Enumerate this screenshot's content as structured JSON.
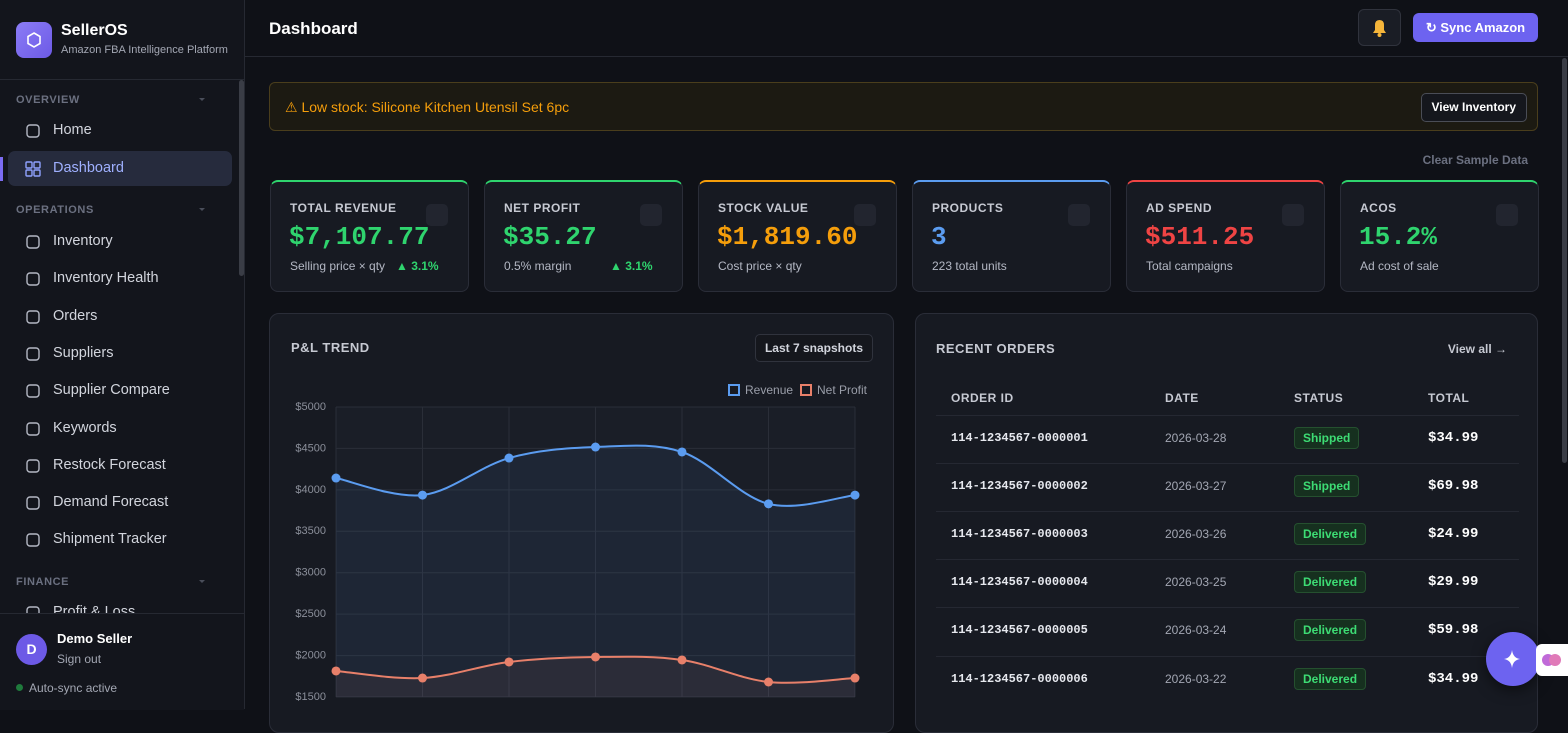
{
  "sidebar": {
    "brand": "SellerOS",
    "tagline": "Amazon FBA Intelligence Platform",
    "sections": [
      {
        "title": "OVERVIEW",
        "items": [
          {
            "label": "Home"
          },
          {
            "label": "Dashboard",
            "active": true
          }
        ]
      },
      {
        "title": "OPERATIONS",
        "items": [
          {
            "label": "Inventory"
          },
          {
            "label": "Inventory Health"
          },
          {
            "label": "Orders"
          },
          {
            "label": "Suppliers"
          },
          {
            "label": "Supplier Compare"
          },
          {
            "label": "Keywords"
          },
          {
            "label": "Restock Forecast"
          },
          {
            "label": "Demand Forecast"
          },
          {
            "label": "Shipment Tracker"
          }
        ]
      },
      {
        "title": "FINANCE",
        "items": [
          {
            "label": "Profit & Loss"
          }
        ]
      }
    ],
    "user": {
      "avatar": "D",
      "name": "Demo Seller",
      "action": "Sign out"
    },
    "sync_status": "Auto-sync active"
  },
  "header": {
    "title": "Dashboard",
    "sync_button": "↻ Sync Amazon"
  },
  "alert": {
    "text": "⚠ Low stock: Silicone Kitchen Utensil Set 6pc",
    "button": "View Inventory"
  },
  "clear_button": "Clear Sample Data",
  "kpis": [
    {
      "label": "TOTAL REVENUE",
      "value": "$7,107.77",
      "sub": "Selling price × qty",
      "change": "▲ 3.1%",
      "color": "#2fd46e"
    },
    {
      "label": "NET PROFIT",
      "value": "$35.27",
      "sub": "0.5% margin",
      "change": "▲ 3.1%",
      "color": "#2fd46e"
    },
    {
      "label": "STOCK VALUE",
      "value": "$1,819.60",
      "sub": "Cost price × qty",
      "color": "#f59e0b"
    },
    {
      "label": "PRODUCTS",
      "value": "3",
      "sub": "223 total units",
      "color": "#5b9cf0"
    },
    {
      "label": "AD SPEND",
      "value": "$511.25",
      "sub": "Total campaigns",
      "color": "#ef4444"
    },
    {
      "label": "ACOS",
      "value": "15.2%",
      "sub": "Ad cost of sale",
      "color": "#2fd46e"
    }
  ],
  "pnl": {
    "title": "P&L TREND",
    "range_button": "Last 7 snapshots",
    "chart_data": {
      "type": "line",
      "categories": [
        null,
        null,
        null,
        null,
        null,
        null,
        null
      ],
      "series": [
        {
          "name": "Revenue",
          "color": "#5b9cf0",
          "values": [
            4143,
            3937,
            4384,
            4517,
            4457,
            3831,
            3937
          ]
        },
        {
          "name": "Net Profit",
          "color": "#e8806a",
          "values": [
            1814,
            1729,
            1923,
            1983,
            1947,
            1681,
            1729
          ]
        }
      ],
      "ylim": [
        1500,
        5000
      ],
      "yticks": [
        {
          "value": 1500,
          "label": "$1500"
        },
        {
          "value": 2000,
          "label": "$2000"
        },
        {
          "value": 2500,
          "label": "$2500"
        },
        {
          "value": 3000,
          "label": "$3000"
        },
        {
          "value": 3500,
          "label": "$3500"
        },
        {
          "value": 4000,
          "label": "$4000"
        },
        {
          "value": 4500,
          "label": "$4500"
        },
        {
          "value": 5000,
          "label": "$5000"
        }
      ],
      "grid": true,
      "legend": "top-right"
    }
  },
  "orders": {
    "title": "RECENT ORDERS",
    "link": "View all →",
    "columns": [
      "ORDER ID",
      "DATE",
      "STATUS",
      "TOTAL"
    ],
    "rows": [
      [
        "114-1234567-0000001",
        "2026-03-28",
        "Shipped",
        "$34.99"
      ],
      [
        "114-1234567-0000002",
        "2026-03-27",
        "Shipped",
        "$69.98"
      ],
      [
        "114-1234567-0000003",
        "2026-03-26",
        "Delivered",
        "$24.99"
      ],
      [
        "114-1234567-0000004",
        "2026-03-25",
        "Delivered",
        "$29.99"
      ],
      [
        "114-1234567-0000005",
        "2026-03-24",
        "Delivered",
        "$59.98"
      ],
      [
        "114-1234567-0000006",
        "2026-03-22",
        "Delivered",
        "$34.99"
      ]
    ]
  }
}
